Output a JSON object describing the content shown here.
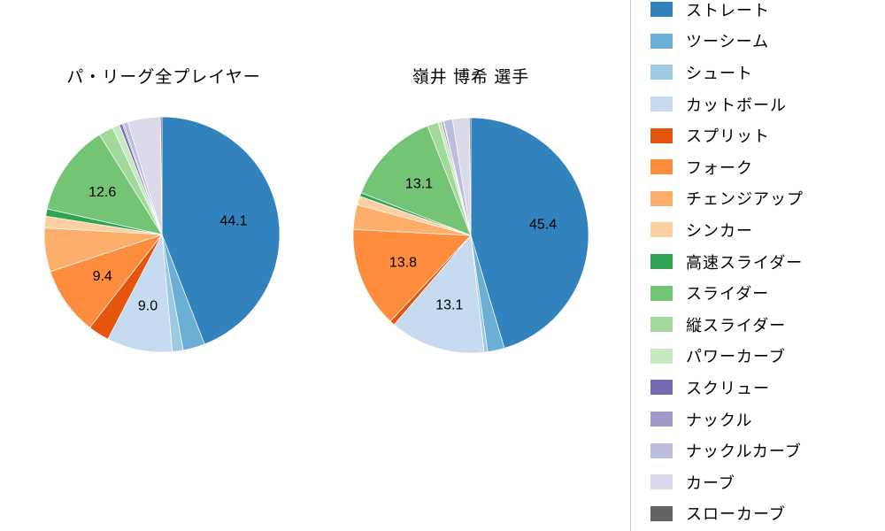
{
  "page": {
    "background": "#ffffff"
  },
  "charts_header": {
    "left_title": "パ・リーグ全プレイヤー",
    "right_title": "嶺井 博希 選手"
  },
  "legend": {
    "position": "right",
    "items": [
      {
        "label": "ストレート",
        "color": "#3182bd"
      },
      {
        "label": "ツーシーム",
        "color": "#6baed6"
      },
      {
        "label": "シュート",
        "color": "#9ecae1"
      },
      {
        "label": "カットボール",
        "color": "#c6dbef"
      },
      {
        "label": "スプリット",
        "color": "#e6550d"
      },
      {
        "label": "フォーク",
        "color": "#fd8d3c"
      },
      {
        "label": "チェンジアップ",
        "color": "#fdae6b"
      },
      {
        "label": "シンカー",
        "color": "#fdd0a2"
      },
      {
        "label": "高速スライダー",
        "color": "#31a354"
      },
      {
        "label": "スライダー",
        "color": "#74c476"
      },
      {
        "label": "縦スライダー",
        "color": "#a1d99b"
      },
      {
        "label": "パワーカーブ",
        "color": "#c7e9c0"
      },
      {
        "label": "スクリュー",
        "color": "#756bb1"
      },
      {
        "label": "ナックル",
        "color": "#9e9ac8"
      },
      {
        "label": "ナックルカーブ",
        "color": "#bcbddc"
      },
      {
        "label": "カーブ",
        "color": "#dadaeb"
      },
      {
        "label": "スローカーブ",
        "color": "#636363"
      }
    ]
  },
  "chart_data": [
    {
      "type": "pie",
      "title": "パ・リーグ全プレイヤー",
      "unit": "%",
      "start_angle_deg": 90,
      "direction": "clockwise",
      "label_min_pct": 8.5,
      "visible_value_labels": [
        44.1,
        9.0,
        9.4,
        12.6
      ],
      "slices": [
        {
          "label": "ストレート",
          "value": 44.1,
          "color": "#3182bd"
        },
        {
          "label": "ツーシーム",
          "value": 3.0,
          "color": "#6baed6"
        },
        {
          "label": "シュート",
          "value": 1.5,
          "color": "#9ecae1"
        },
        {
          "label": "カットボール",
          "value": 9.0,
          "color": "#c6dbef"
        },
        {
          "label": "スプリット",
          "value": 2.9,
          "color": "#e6550d"
        },
        {
          "label": "フォーク",
          "value": 9.4,
          "color": "#fd8d3c"
        },
        {
          "label": "チェンジアップ",
          "value": 6.0,
          "color": "#fdae6b"
        },
        {
          "label": "シンカー",
          "value": 1.6,
          "color": "#fdd0a2"
        },
        {
          "label": "高速スライダー",
          "value": 1.0,
          "color": "#31a354"
        },
        {
          "label": "スライダー",
          "value": 12.6,
          "color": "#74c476"
        },
        {
          "label": "縦スライダー",
          "value": 2.0,
          "color": "#a1d99b"
        },
        {
          "label": "パワーカーブ",
          "value": 1.0,
          "color": "#c7e9c0"
        },
        {
          "label": "スクリュー",
          "value": 0.4,
          "color": "#756bb1"
        },
        {
          "label": "ナックル",
          "value": 0.2,
          "color": "#9e9ac8"
        },
        {
          "label": "ナックルカーブ",
          "value": 0.6,
          "color": "#bcbddc"
        },
        {
          "label": "カーブ",
          "value": 4.5,
          "color": "#dadaeb"
        },
        {
          "label": "スローカーブ",
          "value": 0.2,
          "color": "#636363"
        }
      ]
    },
    {
      "type": "pie",
      "title": "嶺井 博希 選手",
      "unit": "%",
      "start_angle_deg": 90,
      "direction": "clockwise",
      "label_min_pct": 8.5,
      "visible_value_labels": [
        45.4,
        13.1,
        13.8,
        13.1
      ],
      "slices": [
        {
          "label": "ストレート",
          "value": 45.4,
          "color": "#3182bd"
        },
        {
          "label": "ツーシーム",
          "value": 2.3,
          "color": "#6baed6"
        },
        {
          "label": "シュート",
          "value": 0.5,
          "color": "#9ecae1"
        },
        {
          "label": "カットボール",
          "value": 13.1,
          "color": "#c6dbef"
        },
        {
          "label": "スプリット",
          "value": 0.7,
          "color": "#e6550d"
        },
        {
          "label": "フォーク",
          "value": 13.8,
          "color": "#fd8d3c"
        },
        {
          "label": "チェンジアップ",
          "value": 3.4,
          "color": "#fdae6b"
        },
        {
          "label": "シンカー",
          "value": 1.2,
          "color": "#fdd0a2"
        },
        {
          "label": "高速スライダー",
          "value": 0.5,
          "color": "#31a354"
        },
        {
          "label": "スライダー",
          "value": 13.1,
          "color": "#74c476"
        },
        {
          "label": "縦スライダー",
          "value": 1.5,
          "color": "#a1d99b"
        },
        {
          "label": "パワーカーブ",
          "value": 0.5,
          "color": "#c7e9c0"
        },
        {
          "label": "スクリュー",
          "value": 0.2,
          "color": "#756bb1"
        },
        {
          "label": "ナックル",
          "value": 0.1,
          "color": "#9e9ac8"
        },
        {
          "label": "ナックルカーブ",
          "value": 1.2,
          "color": "#bcbddc"
        },
        {
          "label": "カーブ",
          "value": 2.3,
          "color": "#dadaeb"
        },
        {
          "label": "スローカーブ",
          "value": 0.2,
          "color": "#636363"
        }
      ]
    }
  ]
}
